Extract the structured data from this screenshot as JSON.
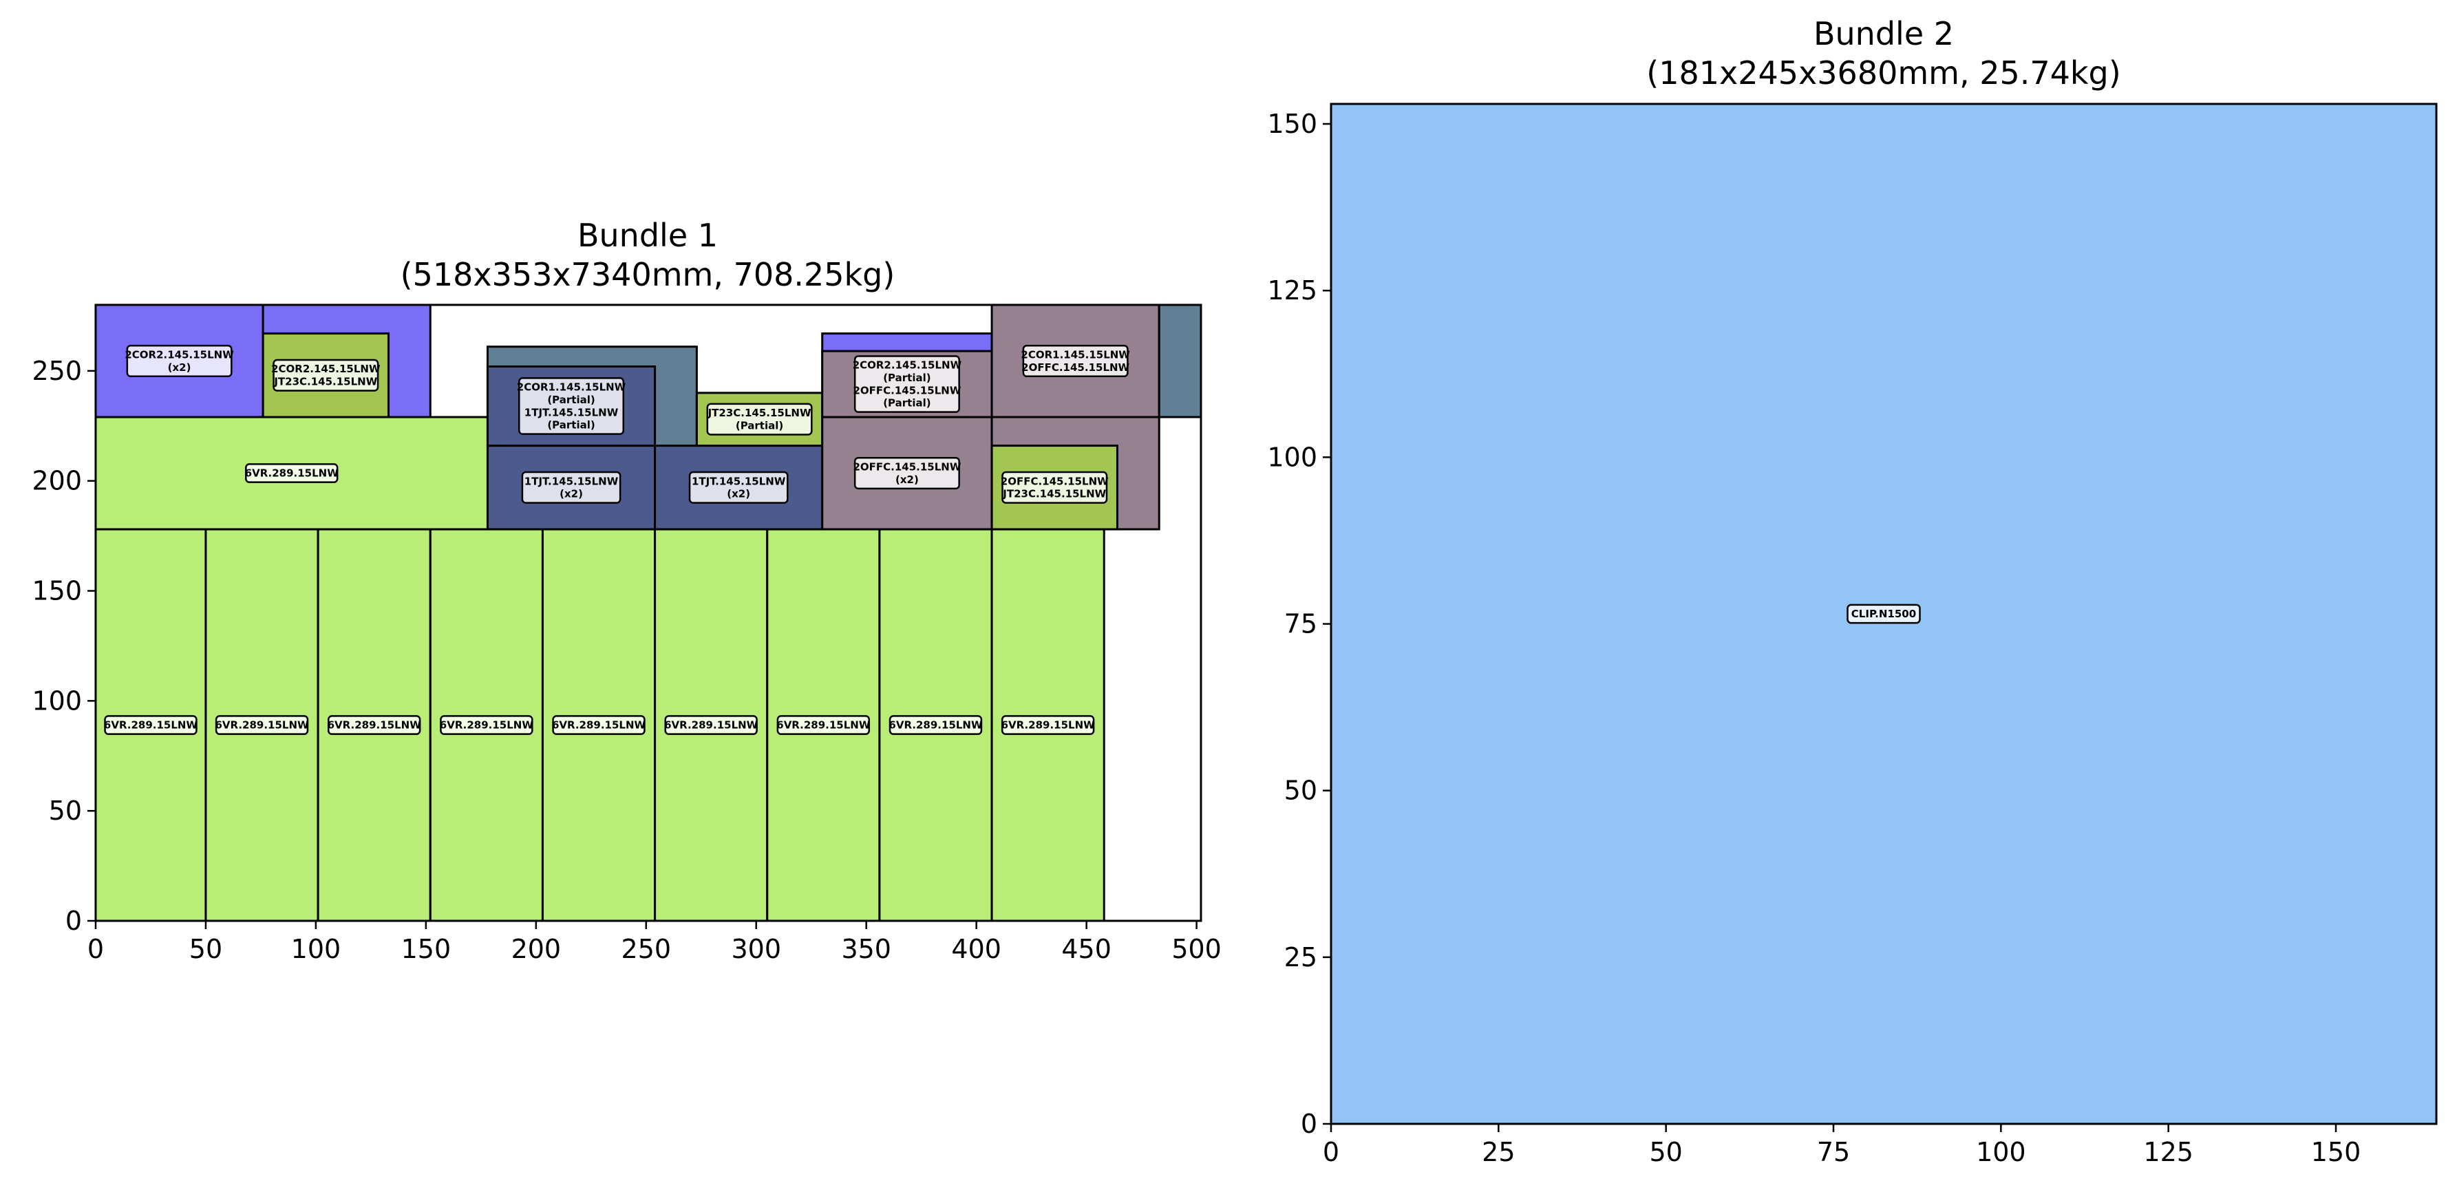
{
  "chart_data": [
    {
      "type": "packing-layout",
      "title": "Bundle 1\n(518x353x7340mm, 708.25kg)",
      "title_line1": "Bundle 1",
      "title_line2": "(518x353x7340mm, 708.25kg)",
      "xlim": [
        0,
        502
      ],
      "ylim": [
        0,
        280
      ],
      "xticks": [
        0,
        50,
        100,
        150,
        200,
        250,
        300,
        350,
        400,
        450,
        500
      ],
      "yticks": [
        0,
        50,
        100,
        150,
        200,
        250
      ],
      "grid": false,
      "rects": [
        {
          "x": 0,
          "y": 0,
          "w": 50,
          "h": 178,
          "color": "#b9ed78",
          "label": "6VR.289.15LNW"
        },
        {
          "x": 50,
          "y": 0,
          "w": 51,
          "h": 178,
          "color": "#b9ed78",
          "label": "6VR.289.15LNW"
        },
        {
          "x": 101,
          "y": 0,
          "w": 51,
          "h": 178,
          "color": "#b9ed78",
          "label": "6VR.289.15LNW"
        },
        {
          "x": 152,
          "y": 0,
          "w": 51,
          "h": 178,
          "color": "#b9ed78",
          "label": "6VR.289.15LNW"
        },
        {
          "x": 203,
          "y": 0,
          "w": 51,
          "h": 178,
          "color": "#b9ed78",
          "label": "6VR.289.15LNW"
        },
        {
          "x": 254,
          "y": 0,
          "w": 51,
          "h": 178,
          "color": "#b9ed78",
          "label": "6VR.289.15LNW"
        },
        {
          "x": 305,
          "y": 0,
          "w": 51,
          "h": 178,
          "color": "#b9ed78",
          "label": "6VR.289.15LNW"
        },
        {
          "x": 356,
          "y": 0,
          "w": 51,
          "h": 178,
          "color": "#b9ed78",
          "label": "6VR.289.15LNW"
        },
        {
          "x": 407,
          "y": 0,
          "w": 51,
          "h": 178,
          "color": "#b9ed78",
          "label": "6VR.289.15LNW"
        },
        {
          "x": 0,
          "y": 178,
          "w": 178,
          "h": 51,
          "color": "#b9ed78",
          "label": "6VR.289.15LNW"
        },
        {
          "x": 0,
          "y": 229,
          "w": 76,
          "h": 51,
          "color": "#7b6ef6",
          "label": "2COR2.145.15LNW\n(x2)"
        },
        {
          "x": 76,
          "y": 229,
          "w": 76,
          "h": 51,
          "color": "#7b6ef6",
          "label": ""
        },
        {
          "x": 76,
          "y": 229,
          "w": 57,
          "h": 38,
          "color": "#a3c552",
          "label": "2COR2.145.15LNW\nJT23C.145.15LNW"
        },
        {
          "x": 178,
          "y": 178,
          "w": 76,
          "h": 38,
          "color": "#4c5a8e",
          "label": "1TJT.145.15LNW\n(x2)"
        },
        {
          "x": 254,
          "y": 178,
          "w": 76,
          "h": 38,
          "color": "#4c5a8e",
          "label": "1TJT.145.15LNW\n(x2)"
        },
        {
          "x": 178,
          "y": 216,
          "w": 95,
          "h": 45,
          "color": "#617f95",
          "label": ""
        },
        {
          "x": 178,
          "y": 216,
          "w": 76,
          "h": 36,
          "color": "#4c5a8e",
          "label": "2COR1.145.15LNW\n(Partial)\n1TJT.145.15LNW\n(Partial)"
        },
        {
          "x": 273,
          "y": 216,
          "w": 57,
          "h": 24,
          "color": "#a3c552",
          "label": "JT23C.145.15LNW\n(Partial)"
        },
        {
          "x": 330,
          "y": 178,
          "w": 77,
          "h": 51,
          "color": "#968191",
          "label": "2OFFC.145.15LNW\n(x2)"
        },
        {
          "x": 330,
          "y": 229,
          "w": 77,
          "h": 38,
          "color": "#7b6ef6",
          "label": ""
        },
        {
          "x": 330,
          "y": 229,
          "w": 77,
          "h": 30,
          "color": "#968191",
          "label": "2COR2.145.15LNW\n(Partial)\n2OFFC.145.15LNW\n(Partial)"
        },
        {
          "x": 407,
          "y": 229,
          "w": 76,
          "h": 51,
          "color": "#968191",
          "label": "2COR1.145.15LNW\n2OFFC.145.15LNW"
        },
        {
          "x": 483,
          "y": 229,
          "w": 19,
          "h": 51,
          "color": "#617f95",
          "label": ""
        },
        {
          "x": 407,
          "y": 178,
          "w": 76,
          "h": 51,
          "color": "#968191",
          "label": ""
        },
        {
          "x": 407,
          "y": 178,
          "w": 57,
          "h": 38,
          "color": "#a3c552",
          "label": "2OFFC.145.15LNW\nJT23C.145.15LNW"
        }
      ]
    },
    {
      "type": "packing-layout",
      "title": "Bundle 2\n(181x245x3680mm, 25.74kg)",
      "title_line1": "Bundle 2",
      "title_line2": "(181x245x3680mm, 25.74kg)",
      "xlim": [
        0,
        165
      ],
      "ylim": [
        0,
        153
      ],
      "xticks": [
        0,
        25,
        50,
        75,
        100,
        125,
        150
      ],
      "yticks": [
        0,
        25,
        50,
        75,
        100,
        125,
        150
      ],
      "grid": false,
      "rects": [
        {
          "x": 0,
          "y": 0,
          "w": 165,
          "h": 153,
          "color": "#92c5f6",
          "label": "CLIP.N1500"
        }
      ]
    }
  ]
}
